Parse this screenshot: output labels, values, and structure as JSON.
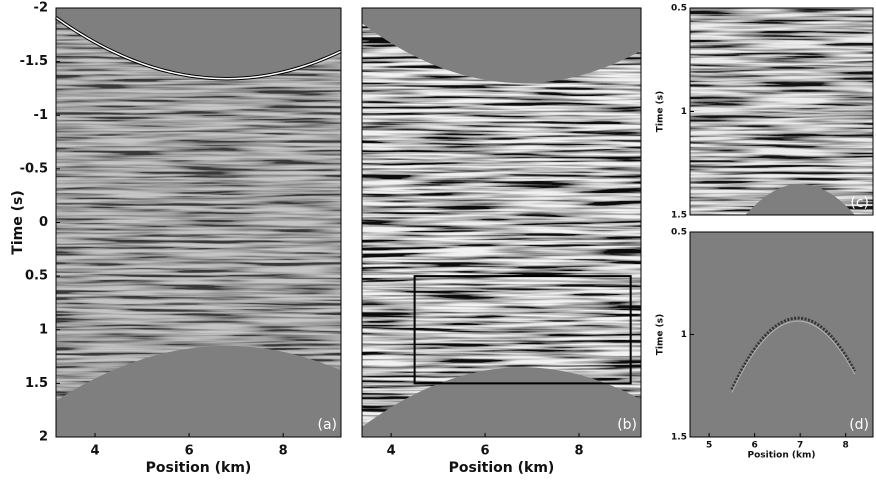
{
  "chart_data": [
    {
      "type": "image",
      "label": "(a)",
      "xlabel": "Position (km)",
      "ylabel": "Time (s)",
      "xlim": [
        3.17,
        9.23
      ],
      "ylim": [
        -2,
        2
      ],
      "xticks": [
        4,
        6,
        8
      ],
      "yticks": [
        -2,
        -1.5,
        -1,
        -0.5,
        0,
        0.5,
        1,
        1.5,
        2
      ]
    },
    {
      "type": "image",
      "label": "(b)",
      "xlabel": "Position (km)",
      "xlim": [
        3.38,
        9.32
      ],
      "ylim": [
        -2,
        2
      ],
      "xticks": [
        4,
        6,
        8
      ],
      "box": {
        "x": [
          4.5,
          9.1
        ],
        "y": [
          0.5,
          1.5
        ]
      }
    },
    {
      "type": "image",
      "label": "(c)",
      "ylabel": "Time (s)",
      "xlim": [
        4.58,
        8.6
      ],
      "ylim": [
        0.5,
        1.5
      ],
      "yticks": [
        0.5,
        1,
        1.5
      ]
    },
    {
      "type": "image",
      "label": "(d)",
      "xlabel": "Position (km)",
      "ylabel": "Time (s)",
      "xlim": [
        4.58,
        8.6
      ],
      "ylim": [
        0.5,
        1.5
      ],
      "xticks": [
        5,
        6,
        7,
        8
      ],
      "yticks": [
        0.5,
        1,
        1.5
      ]
    }
  ]
}
